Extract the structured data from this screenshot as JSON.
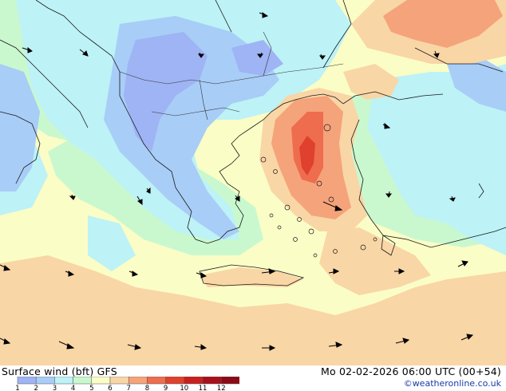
{
  "footer": {
    "title": "Surface wind (bft)  GFS",
    "datetime": "Mo 02-02-2026 06:00 UTC (00+54)",
    "credit": "©weatheronline.co.uk"
  },
  "legend": {
    "ticks": [
      "1",
      "2",
      "3",
      "4",
      "5",
      "6",
      "7",
      "8",
      "9",
      "10",
      "11",
      "12"
    ],
    "colors": [
      "#9fb4f4",
      "#a8cdf7",
      "#bdf2f6",
      "#c9f8cf",
      "#fbfdc6",
      "#f9d6a6",
      "#f5a37a",
      "#ee6d4f",
      "#e0402e",
      "#c82020",
      "#a8101b",
      "#8c0a18"
    ]
  },
  "map": {
    "palette": {
      "bft3": "#bdf2f6",
      "bft4": "#c9f8cf",
      "bft5": "#fbfdc6",
      "bft6": "#f9d6a6",
      "bft7": "#f5a37a",
      "bft8": "#ee6d4f",
      "bft9": "#e0402e",
      "bft2": "#a8cdf7",
      "bft1": "#9fb4f4"
    }
  }
}
